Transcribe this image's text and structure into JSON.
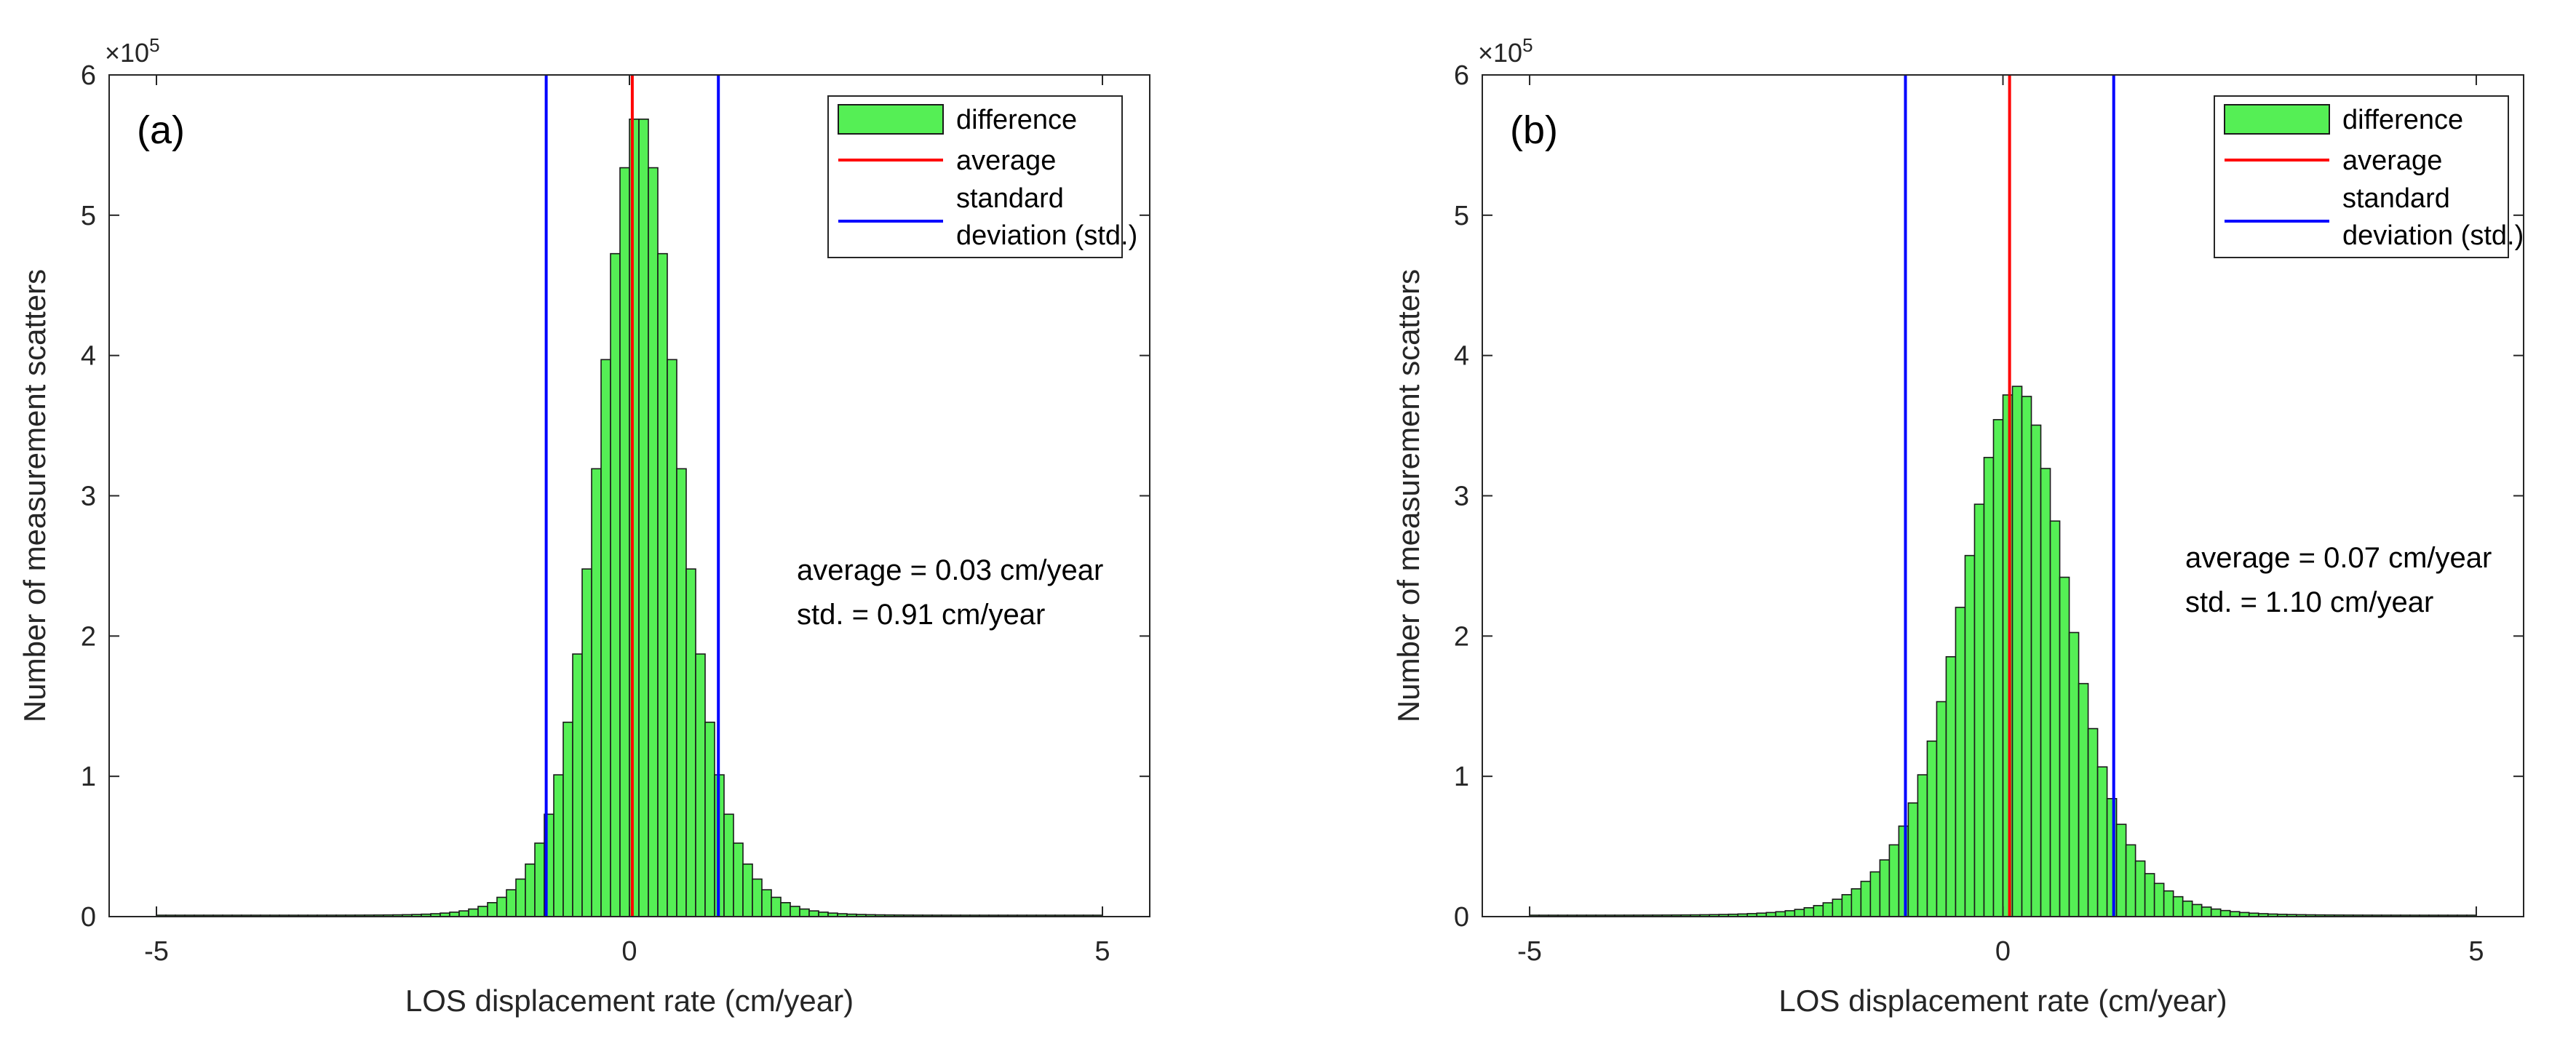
{
  "colors": {
    "bar_fill": "#55ef55",
    "bar_edge": "#1a1a1a",
    "average_line": "#ff0000",
    "std_line": "#0000ff",
    "axis": "#262626"
  },
  "chart_data": [
    {
      "type": "bar",
      "panel_label": "(a)",
      "xlabel": "LOS displacement rate (cm/year)",
      "ylabel": "Number of measurement scatters",
      "y_multiplier": "×10",
      "y_multiplier_exp": "5",
      "xlim": [
        -5.5,
        5.5
      ],
      "ylim": [
        0,
        6
      ],
      "xticks": [
        -5,
        0,
        5
      ],
      "xtick_labels": [
        "-5",
        "0",
        "5"
      ],
      "yticks": [
        0,
        1,
        2,
        3,
        4,
        5,
        6
      ],
      "ytick_labels": [
        "0",
        "1",
        "2",
        "3",
        "4",
        "5",
        "6"
      ],
      "bin_width": 0.1,
      "x_start": -5.0,
      "bins_y_units": "x10^5 counts",
      "average": 0.03,
      "std": 0.91,
      "legend": {
        "difference": "difference",
        "average": "average",
        "std_line1": "standard",
        "std_line2": "deviation (std.)"
      },
      "annotation": {
        "average_text": "average = 0.03 cm/year",
        "std_text": "std. = 0.91 cm/year"
      },
      "shape": {
        "peak": 5.72,
        "peak_x": 0.1,
        "scale_left": 0.56,
        "scale_right": 0.56
      }
    },
    {
      "type": "bar",
      "panel_label": "(b)",
      "xlabel": "LOS displacement rate (cm/year)",
      "ylabel": "Number of measurement scatters",
      "y_multiplier": "×10",
      "y_multiplier_exp": "5",
      "xlim": [
        -5.5,
        5.5
      ],
      "ylim": [
        0,
        6
      ],
      "xticks": [
        -5,
        0,
        5
      ],
      "xtick_labels": [
        "-5",
        "0",
        "5"
      ],
      "yticks": [
        0,
        1,
        2,
        3,
        4,
        5,
        6
      ],
      "ytick_labels": [
        "0",
        "1",
        "2",
        "3",
        "4",
        "5",
        "6"
      ],
      "bin_width": 0.1,
      "x_start": -5.0,
      "bins_y_units": "x10^5 counts",
      "average": 0.07,
      "std": 1.1,
      "legend": {
        "difference": "difference",
        "average": "average",
        "std_line1": "standard",
        "std_line2": "deviation (std.)"
      },
      "annotation": {
        "average_text": "average = 0.07 cm/year",
        "std_text": "std. = 1.10 cm/year"
      },
      "shape": {
        "peak": 3.77,
        "peak_x": 0.15,
        "scale_left": 0.78,
        "scale_right": 0.72
      }
    }
  ]
}
